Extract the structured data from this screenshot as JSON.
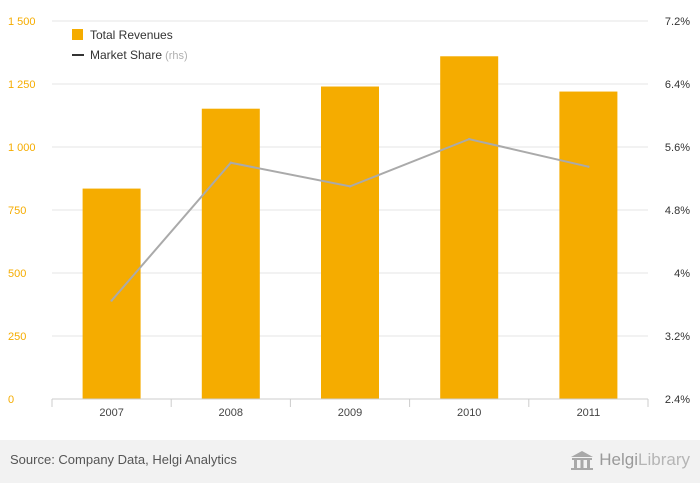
{
  "chart_data": {
    "type": "bar",
    "categories": [
      "2007",
      "2008",
      "2009",
      "2010",
      "2011"
    ],
    "series": [
      {
        "name": "Total Revenues",
        "type": "bar",
        "axis": "left",
        "color": "#f5ac00",
        "values": [
          835,
          1152,
          1240,
          1360,
          1220
        ]
      },
      {
        "name": "Market Share",
        "type": "line",
        "axis": "right",
        "color": "#aaaaaa",
        "values": [
          3.65,
          5.4,
          5.1,
          5.7,
          5.35
        ]
      }
    ],
    "y_left": {
      "min": 0,
      "max": 1500,
      "ticks": [
        0,
        250,
        500,
        750,
        1000,
        1250,
        1500
      ],
      "tick_labels": [
        "0",
        "250",
        "500",
        "750",
        "1 000",
        "1 250",
        "1 500"
      ]
    },
    "y_right": {
      "min": 2.4,
      "max": 7.2,
      "ticks": [
        2.4,
        3.2,
        4,
        4.8,
        5.6,
        6.4,
        7.2
      ],
      "tick_labels": [
        "2.4%",
        "3.2%",
        "4%",
        "4.8%",
        "5.6%",
        "6.4%",
        "7.2%"
      ]
    },
    "grid": true,
    "legend": {
      "position": "top-left",
      "items": [
        {
          "label": "Total Revenues",
          "suffix": "",
          "marker": "square",
          "color": "#f5ac00"
        },
        {
          "label": "Market Share",
          "suffix": "(rhs)",
          "marker": "line",
          "color": "#333333"
        }
      ]
    }
  },
  "footer": {
    "source": "Source: Company Data, Helgi Analytics",
    "brand_helgi": "Helgi",
    "brand_library": "Library",
    "brand_icon": "library-building-icon"
  }
}
